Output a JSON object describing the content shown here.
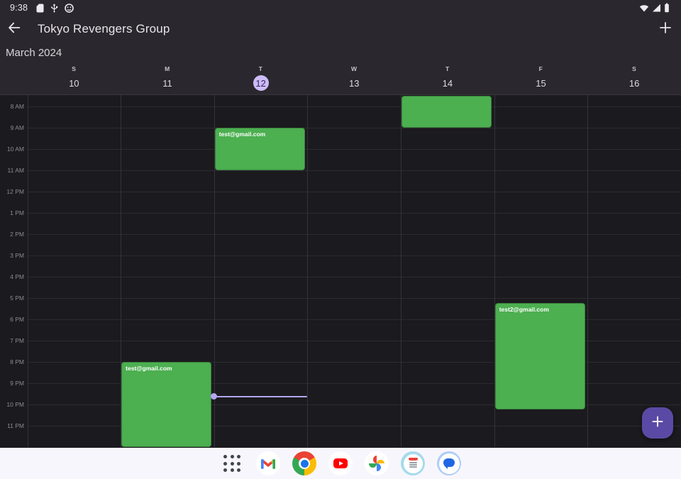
{
  "status_bar": {
    "time": "9:38",
    "left_icons": [
      "note-icon",
      "usb-icon",
      "face-icon"
    ],
    "right_icons": [
      "wifi-icon",
      "signal-icon",
      "battery-icon"
    ]
  },
  "app_bar": {
    "title": "Tokyo Revengers Group"
  },
  "calendar": {
    "month_label": "March 2024",
    "day_letters": [
      "S",
      "M",
      "T",
      "W",
      "T",
      "F",
      "S"
    ],
    "day_numbers": [
      "10",
      "11",
      "12",
      "13",
      "14",
      "15",
      "16"
    ],
    "today_index": 2,
    "hour_labels": [
      "8 AM",
      "9 AM",
      "10 AM",
      "11 AM",
      "12 PM",
      "1 PM",
      "2 PM",
      "3 PM",
      "4 PM",
      "5 PM",
      "6 PM",
      "7 PM",
      "8 PM",
      "9 PM",
      "10 PM",
      "11 PM"
    ],
    "events": [
      {
        "day_index": 1,
        "label": "test@gmail.com",
        "start": "20:00",
        "end": "24:00"
      },
      {
        "day_index": 2,
        "label": "test@gmail.com",
        "start": "09:00",
        "end": "11:00"
      },
      {
        "day_index": 4,
        "label": "",
        "start": "07:30",
        "end": "09:00"
      },
      {
        "day_index": 5,
        "label": "test2@gmail.com",
        "start": "17:15",
        "end": "22:15"
      }
    ],
    "now_indicator": {
      "day_index": 2,
      "time": "21:38"
    },
    "colors": {
      "event": "#4caf50",
      "event_text": "#ffffff",
      "today_circle": "#cdbcf8",
      "today_text": "#322559",
      "now_line": "#b4a5f1"
    }
  },
  "fab": {
    "icon": "plus",
    "color": "#5b4aa5"
  },
  "dock": {
    "icons": [
      "app-grid-icon",
      "gmail-icon",
      "chrome-icon",
      "youtube-icon",
      "photos-icon",
      "storefront-icon",
      "messages-icon"
    ]
  }
}
